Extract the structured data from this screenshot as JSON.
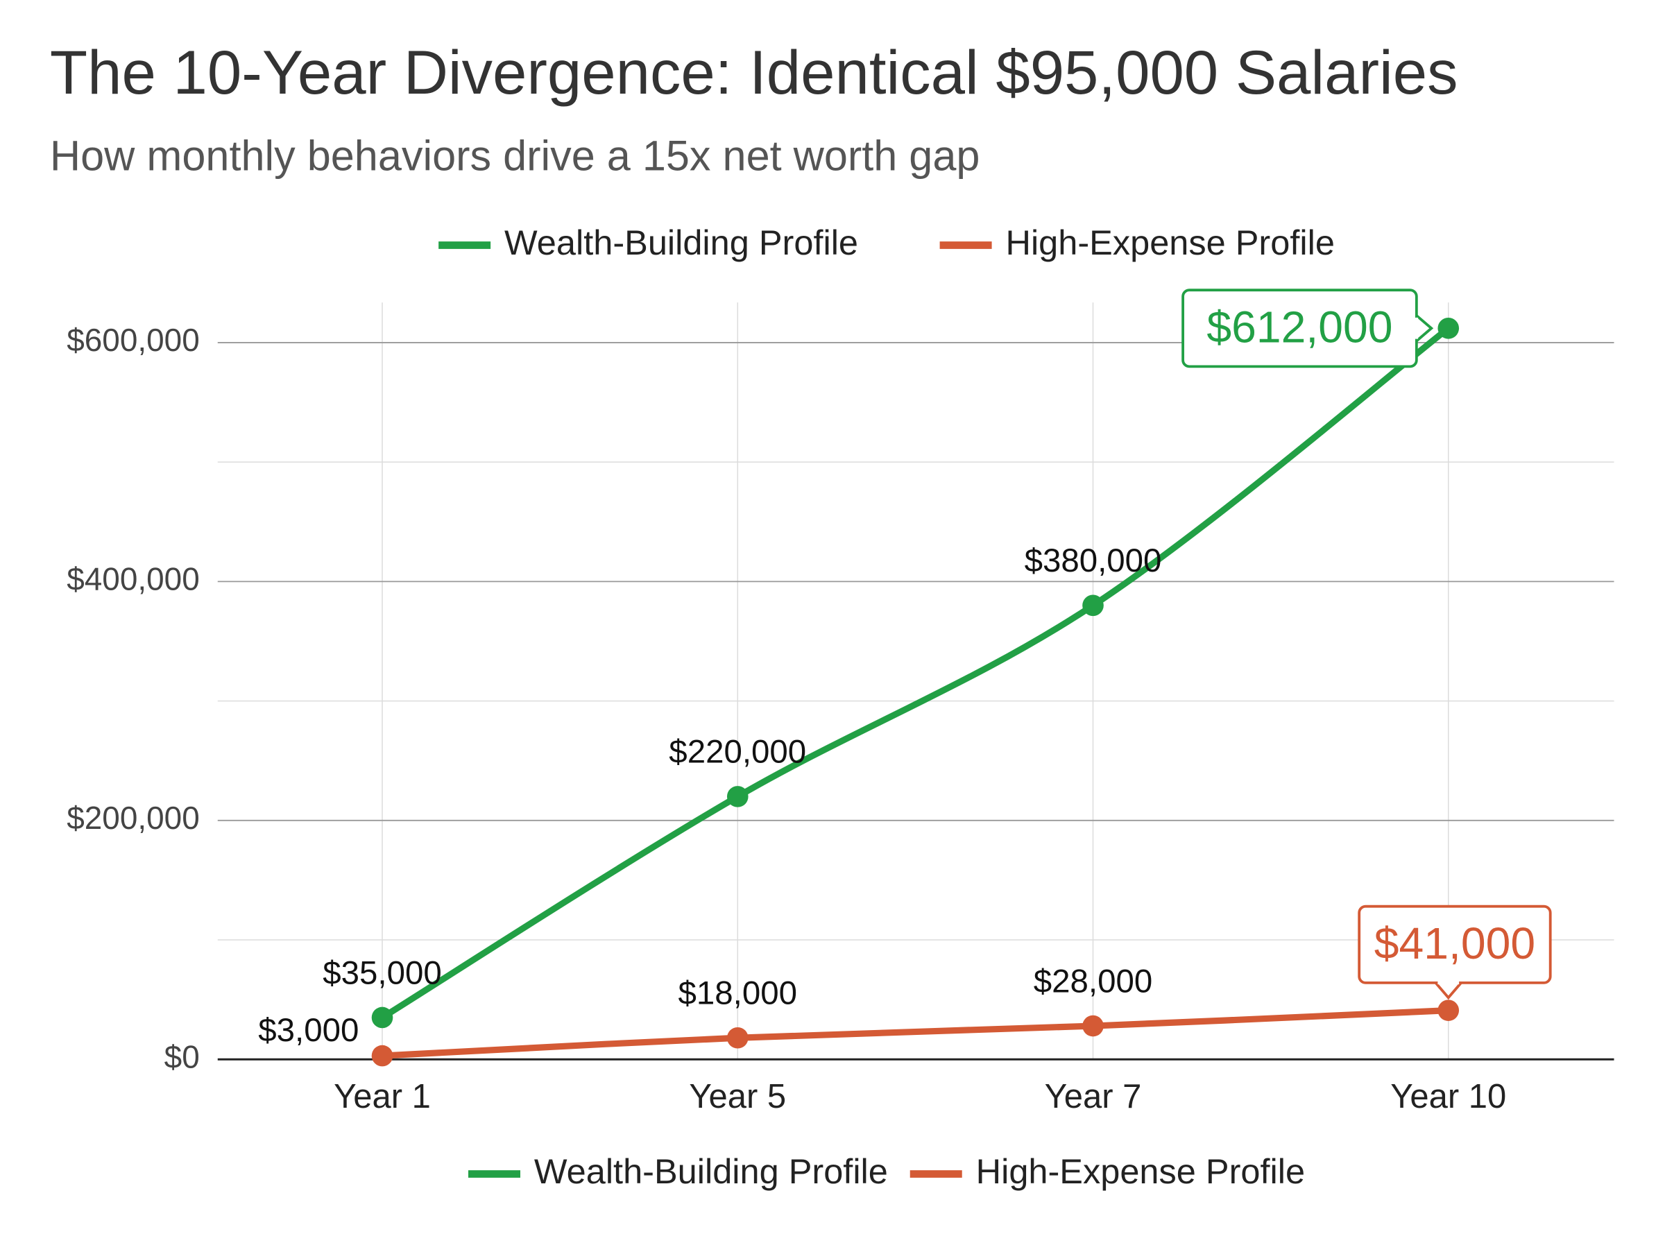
{
  "chart_data": {
    "type": "line",
    "title": "The 10-Year Divergence: Identical $95,000 Salaries",
    "subtitle": "How monthly behaviors drive a 15x net worth gap",
    "categories": [
      "Year 1",
      "Year 5",
      "Year 7",
      "Year 10"
    ],
    "series": [
      {
        "name": "Wealth-Building Profile",
        "color": "#22a045",
        "values": [
          35000,
          220000,
          380000,
          612000
        ],
        "value_labels": [
          "$35,000",
          "$220,000",
          "$380,000",
          "$612,000"
        ]
      },
      {
        "name": "High-Expense Profile",
        "color": "#d45a35",
        "values": [
          3000,
          18000,
          28000,
          41000
        ],
        "value_labels": [
          "$3,000",
          "$18,000",
          "$28,000",
          "$41,000"
        ]
      }
    ],
    "ylim": [
      0,
      630000
    ],
    "yticks": [
      {
        "value": 0,
        "label": "$0"
      },
      {
        "value": 200000,
        "label": "$200,000"
      },
      {
        "value": 400000,
        "label": "$400,000"
      },
      {
        "value": 600000,
        "label": "$600,000"
      }
    ],
    "minor_gridlines": [
      100000,
      300000,
      500000
    ],
    "grid": true,
    "legend_position": [
      "top",
      "bottom"
    ]
  }
}
